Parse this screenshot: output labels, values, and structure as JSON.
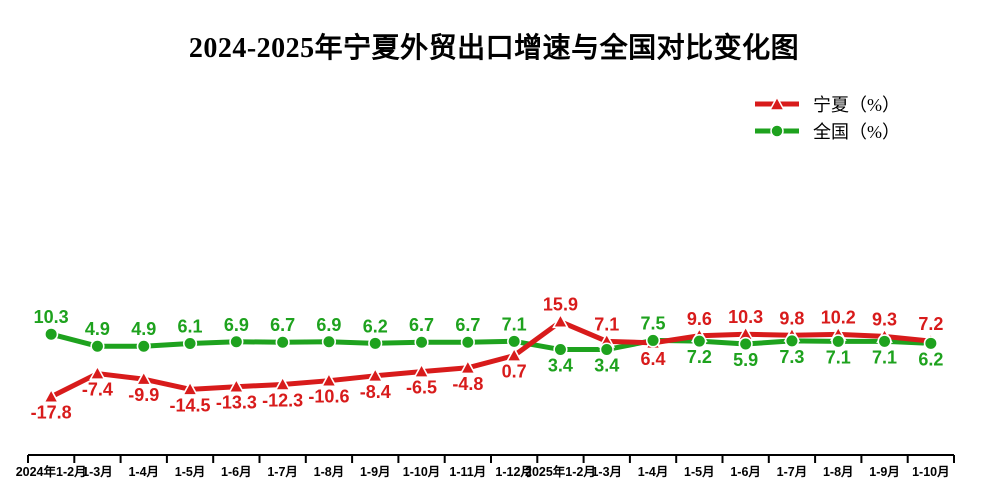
{
  "chart_data": {
    "type": "line",
    "title": "2024-2025年宁夏外贸出口增速与全国对比变化图",
    "categories": [
      "2024年1-2月",
      "1-3月",
      "1-4月",
      "1-5月",
      "1-6月",
      "1-7月",
      "1-8月",
      "1-9月",
      "1-10月",
      "1-11月",
      "1-12月",
      "2025年1-2月",
      "1-3月",
      "1-4月",
      "1-5月",
      "1-6月",
      "1-7月",
      "1-8月",
      "1-9月",
      "1-10月"
    ],
    "series": [
      {
        "id": "ningxia",
        "name": "宁夏（%）",
        "color": "#d81b1b",
        "marker": "triangle",
        "values": [
          -17.8,
          -7.4,
          -9.9,
          -14.5,
          -13.3,
          -12.3,
          -10.6,
          -8.4,
          -6.5,
          -4.8,
          0.7,
          15.9,
          7.1,
          6.4,
          9.6,
          10.3,
          9.8,
          10.2,
          9.3,
          7.2
        ]
      },
      {
        "id": "national",
        "name": "全国（%）",
        "color": "#1ea21e",
        "marker": "circle",
        "values": [
          10.3,
          4.9,
          4.9,
          6.1,
          6.9,
          6.7,
          6.9,
          6.2,
          6.7,
          6.7,
          7.1,
          3.4,
          3.4,
          7.5,
          7.2,
          5.9,
          7.3,
          7.1,
          7.1,
          6.2
        ]
      }
    ],
    "xlabel": "",
    "ylabel": "",
    "ylim": [
      -44,
      45
    ],
    "grid": false,
    "legend_position": "top-right",
    "axis_color": "#000000",
    "label_decimals": 1
  }
}
